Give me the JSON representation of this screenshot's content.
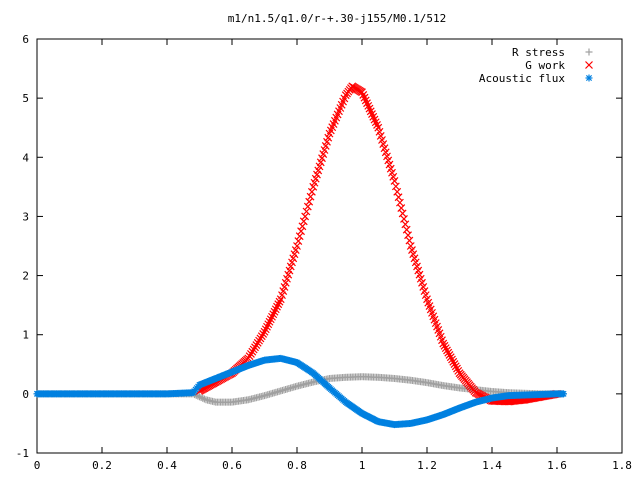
{
  "chart_data": {
    "type": "scatter",
    "title": "m1/n1.5/q1.0/r-+.30-j155/M0.1/512",
    "xlabel": "",
    "ylabel": "",
    "xlim": [
      0,
      1.8
    ],
    "ylim": [
      -1,
      6
    ],
    "xticks": [
      "0",
      "0.2",
      "0.4",
      "0.6",
      "0.8",
      "1",
      "1.2",
      "1.4",
      "1.6",
      "1.8"
    ],
    "yticks": [
      "-1",
      "0",
      "1",
      "2",
      "3",
      "4",
      "5",
      "6"
    ],
    "grid": false,
    "legend_position": "top-right",
    "series": [
      {
        "name": "R stress",
        "marker": "+",
        "color": "#a0a0a0",
        "x": [
          0.0,
          0.1,
          0.2,
          0.3,
          0.4,
          0.48,
          0.5,
          0.52,
          0.55,
          0.6,
          0.65,
          0.7,
          0.75,
          0.8,
          0.85,
          0.9,
          0.95,
          1.0,
          1.05,
          1.1,
          1.15,
          1.2,
          1.25,
          1.3,
          1.35,
          1.4,
          1.45,
          1.5,
          1.55,
          1.6,
          1.62
        ],
        "y": [
          0,
          0,
          0,
          0,
          0,
          0,
          -0.05,
          -0.1,
          -0.14,
          -0.14,
          -0.1,
          -0.03,
          0.05,
          0.13,
          0.2,
          0.26,
          0.28,
          0.29,
          0.28,
          0.26,
          0.23,
          0.19,
          0.14,
          0.1,
          0.07,
          0.04,
          0.02,
          0.01,
          0.0,
          0.0,
          0.0
        ]
      },
      {
        "name": "G work",
        "marker": "x",
        "color": "#ff0000",
        "x": [
          0.5,
          0.55,
          0.6,
          0.65,
          0.7,
          0.75,
          0.8,
          0.85,
          0.9,
          0.95,
          0.97,
          1.0,
          1.05,
          1.1,
          1.15,
          1.2,
          1.25,
          1.3,
          1.35,
          1.4,
          1.45,
          1.5,
          1.55,
          1.6
        ],
        "y": [
          0.05,
          0.2,
          0.35,
          0.6,
          1.05,
          1.6,
          2.5,
          3.5,
          4.4,
          5.05,
          5.2,
          5.1,
          4.5,
          3.6,
          2.5,
          1.6,
          0.85,
          0.35,
          0.02,
          -0.12,
          -0.13,
          -0.1,
          -0.05,
          0.0
        ]
      },
      {
        "name": "Acoustic flux",
        "marker": "*",
        "color": "#0080e0",
        "x": [
          0.0,
          0.1,
          0.2,
          0.3,
          0.4,
          0.48,
          0.5,
          0.55,
          0.6,
          0.65,
          0.7,
          0.75,
          0.8,
          0.85,
          0.9,
          0.95,
          1.0,
          1.05,
          1.1,
          1.15,
          1.2,
          1.25,
          1.3,
          1.35,
          1.4,
          1.45,
          1.5,
          1.55,
          1.6,
          1.62
        ],
        "y": [
          0,
          0,
          0,
          0,
          0,
          0.02,
          0.15,
          0.26,
          0.37,
          0.48,
          0.57,
          0.6,
          0.53,
          0.35,
          0.1,
          -0.14,
          -0.33,
          -0.47,
          -0.52,
          -0.5,
          -0.44,
          -0.35,
          -0.24,
          -0.14,
          -0.07,
          -0.03,
          -0.02,
          -0.01,
          0.0,
          0.0
        ]
      }
    ]
  }
}
